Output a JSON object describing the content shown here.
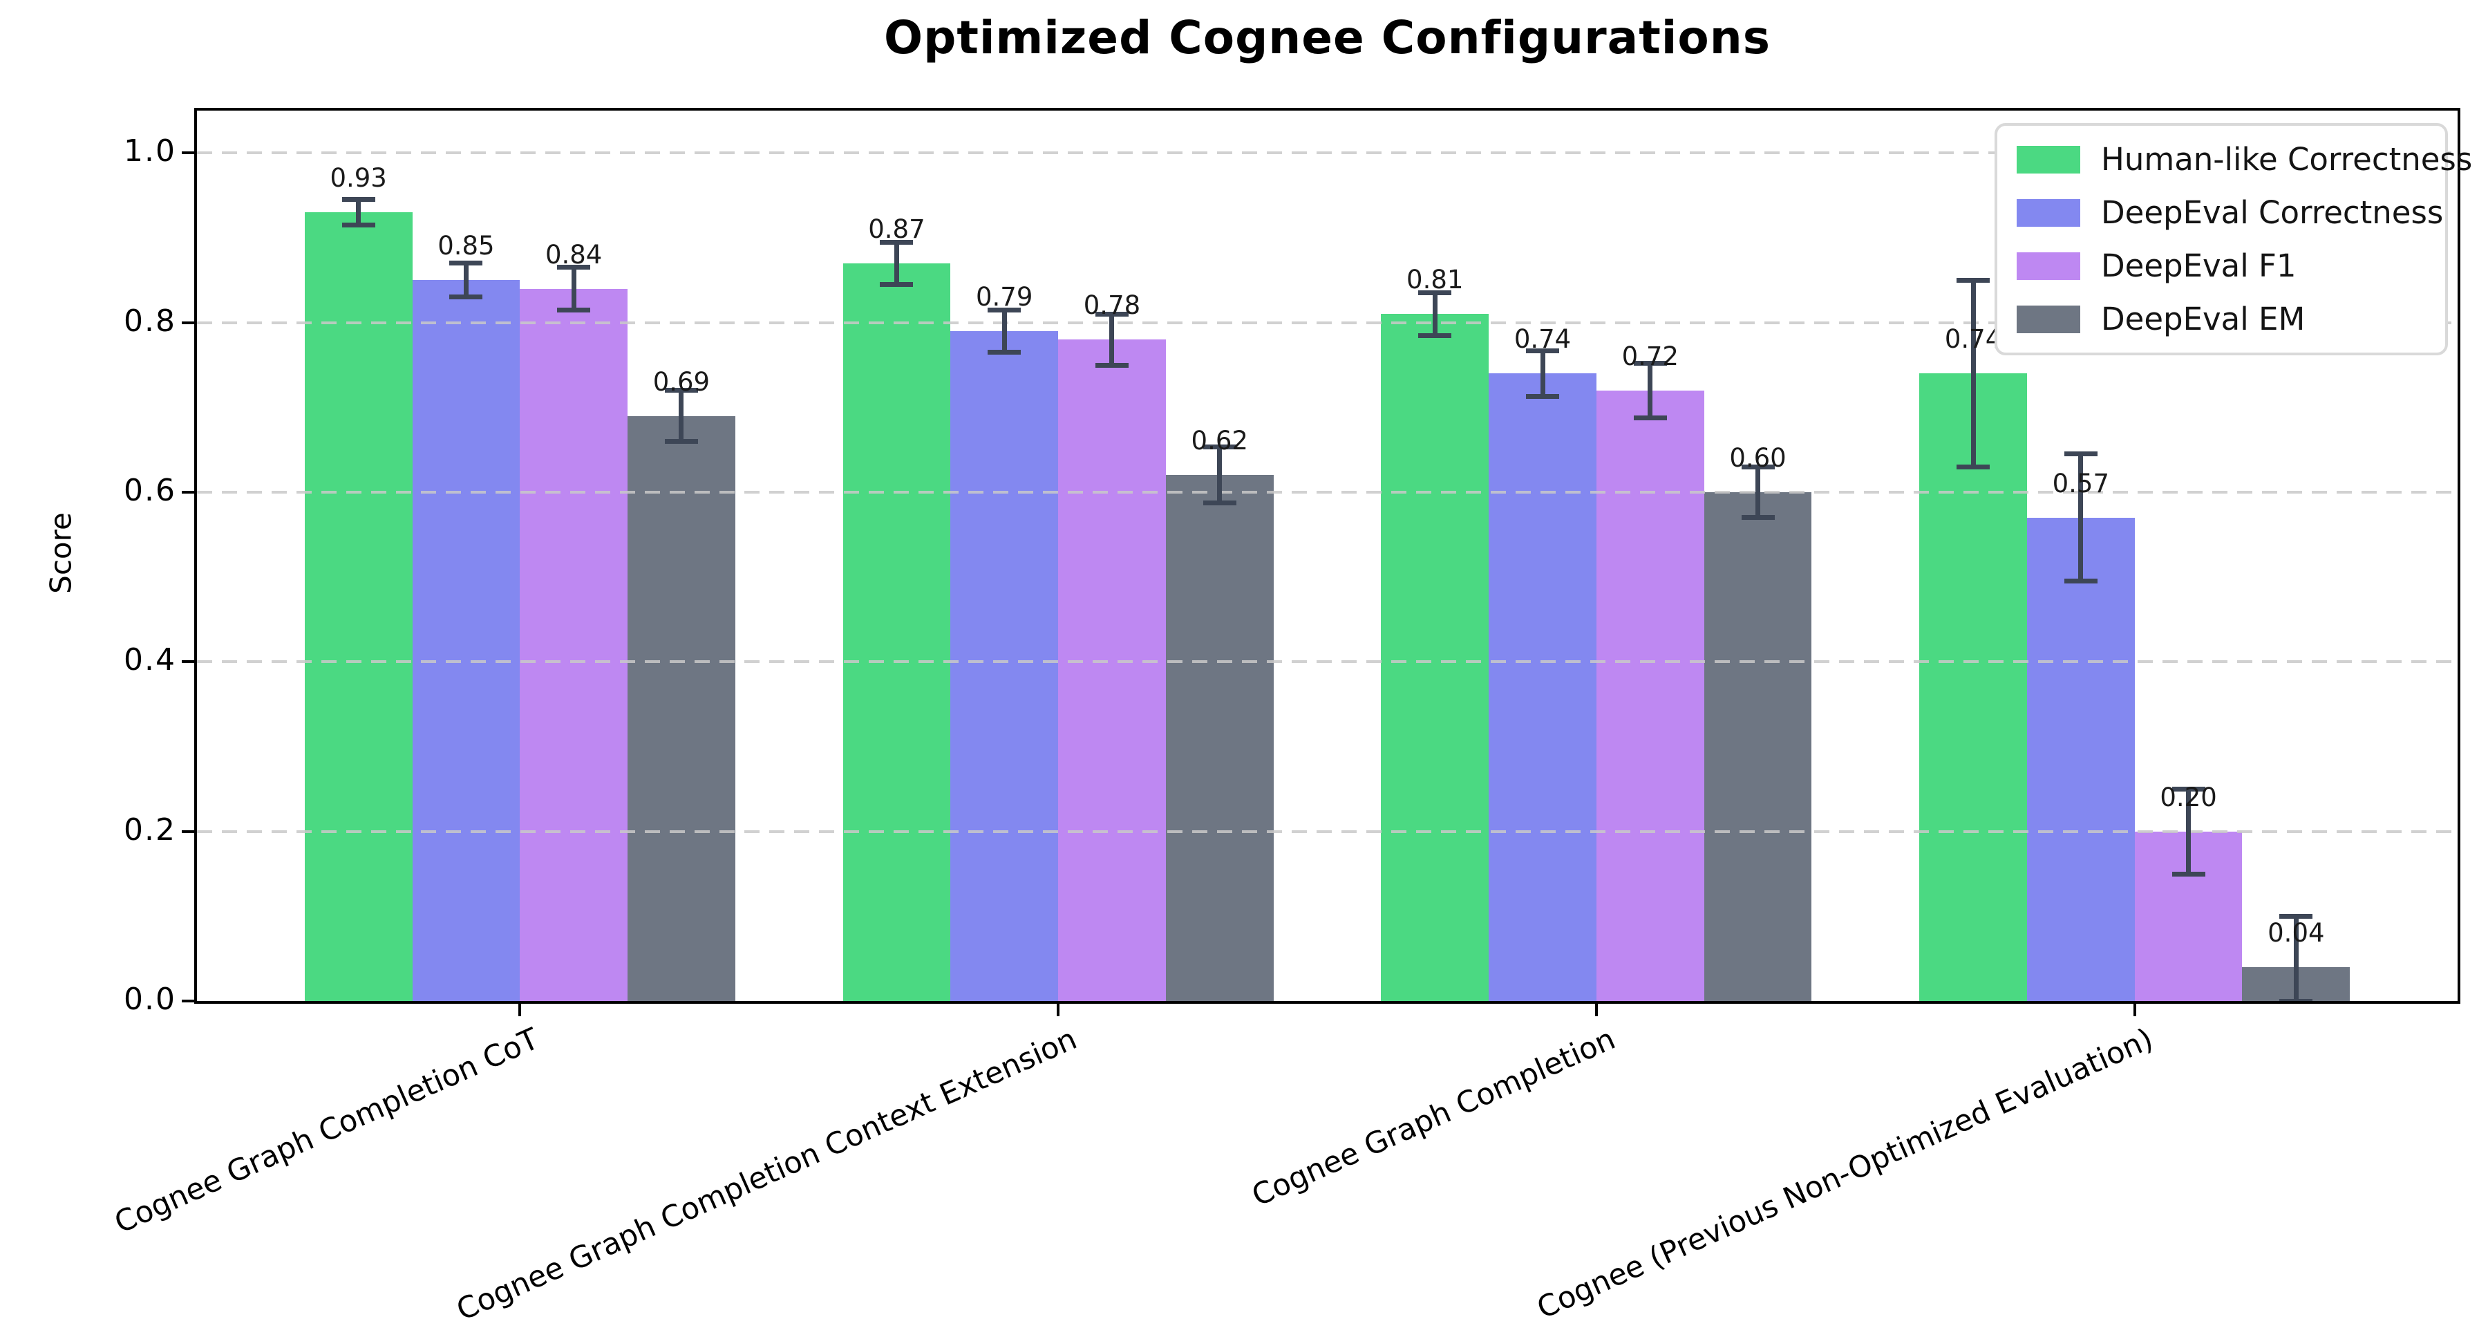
{
  "chart_data": {
    "type": "bar",
    "title": "Optimized Cognee Configurations",
    "ylabel": "Score",
    "xlabel": "",
    "categories": [
      "Cognee Graph Completion CoT",
      "Cognee Graph Completion Context Extension",
      "Cognee Graph Completion",
      "Cognee (Previous Non-Optimized Evaluation)"
    ],
    "series": [
      {
        "name": "Human-like Correctness",
        "color": "#4BD982",
        "values": [
          0.93,
          0.87,
          0.81,
          0.74
        ],
        "errors": [
          0.015,
          0.025,
          0.025,
          0.11
        ]
      },
      {
        "name": "DeepEval Correctness",
        "color": "#8388F0",
        "values": [
          0.85,
          0.79,
          0.74,
          0.57
        ],
        "errors": [
          0.02,
          0.025,
          0.027,
          0.075
        ]
      },
      {
        "name": "DeepEval F1",
        "color": "#BE88F2",
        "values": [
          0.84,
          0.78,
          0.72,
          0.2
        ],
        "errors": [
          0.025,
          0.03,
          0.032,
          0.05
        ]
      },
      {
        "name": "DeepEval EM",
        "color": "#6E7683",
        "values": [
          0.69,
          0.62,
          0.6,
          0.04
        ],
        "errors": [
          0.03,
          0.033,
          0.03,
          0.06
        ]
      }
    ],
    "ylim": [
      0,
      1.05
    ],
    "xlim": [
      -0.6,
      3.6
    ],
    "yticks": [
      {
        "label": "0.0",
        "value": 0.0
      },
      {
        "label": "0.2",
        "value": 0.2
      },
      {
        "label": "0.4",
        "value": 0.4
      },
      {
        "label": "0.6",
        "value": 0.6
      },
      {
        "label": "0.8",
        "value": 0.8
      },
      {
        "label": "1.0",
        "value": 1.0
      }
    ],
    "grid": "horizontal-dashed",
    "legend_position": "upper-right",
    "bar_width_units": 0.2,
    "value_label_decimals": 2,
    "colors": {
      "error_bar": "#3D4656",
      "grid": "#C9C9C9",
      "spine": "#000000",
      "value_label": "#1a1a1a",
      "background": "#FFFFFF"
    }
  }
}
